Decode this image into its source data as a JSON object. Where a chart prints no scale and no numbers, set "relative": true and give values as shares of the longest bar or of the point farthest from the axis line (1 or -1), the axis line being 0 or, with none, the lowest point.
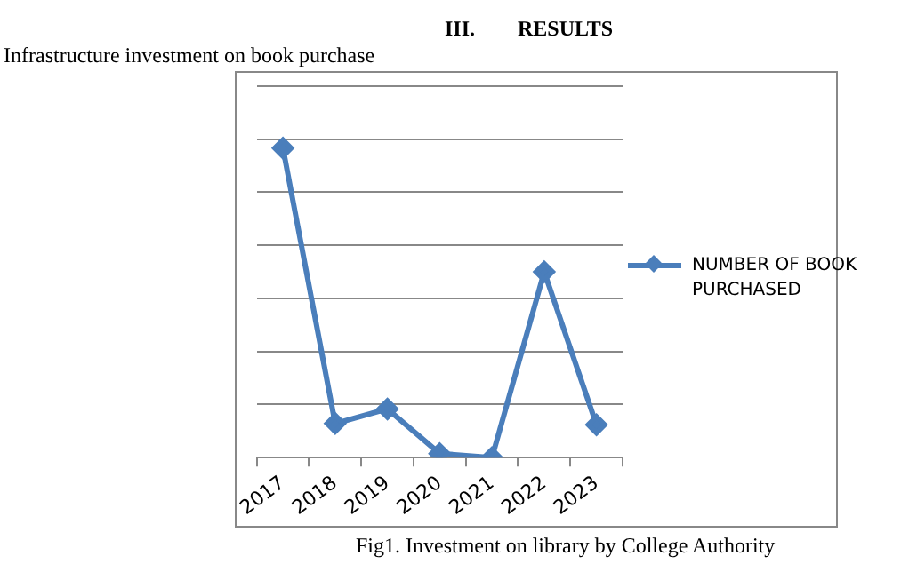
{
  "chart_data": {
    "type": "line",
    "title": "Infrastructure investment on book purchase",
    "annotations": [
      "III.        RESULTS",
      "Fig1. Investment on library by College Authority"
    ],
    "categories": [
      "2017",
      "2018",
      "2019",
      "2020",
      "2021",
      "2022",
      "2023"
    ],
    "relative": true,
    "series": [
      {
        "name": "NUMBER OF BOOK PURCHASED",
        "color": "#4a7ebb",
        "values": [
          1,
          0.11,
          0.157,
          0.013,
          0,
          0.6,
          0.106
        ]
      }
    ],
    "grid": "y",
    "legend": "right",
    "marker": "diamond",
    "line_style": "solid"
  }
}
